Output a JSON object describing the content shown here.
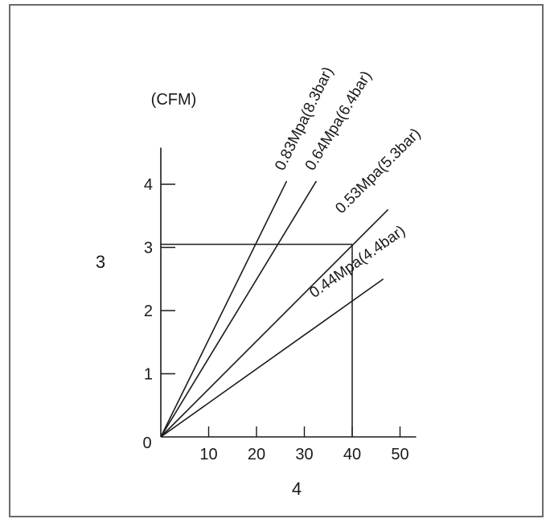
{
  "chart_data": {
    "type": "line",
    "title": "",
    "xlabel": "4",
    "ylabel": "3",
    "y_unit": "(CFM)",
    "xlim": [
      0,
      50
    ],
    "ylim": [
      0,
      5
    ],
    "x_ticks": [
      10,
      20,
      30,
      40,
      50
    ],
    "y_ticks": [
      1,
      2,
      3,
      4
    ],
    "origin_label": "0",
    "grid": false,
    "series": [
      {
        "name": "0.83Mpa(8.3bar)",
        "x": [
          0,
          26.3
        ],
        "y": [
          0,
          4.05
        ]
      },
      {
        "name": "0.64Mpa(6.4bar)",
        "x": [
          0,
          32.5
        ],
        "y": [
          0,
          4.05
        ]
      },
      {
        "name": "0.53Mpa(5.3bar)",
        "x": [
          0,
          47.5
        ],
        "y": [
          0,
          3.6
        ]
      },
      {
        "name": "0.44Mpa(4.4bar)",
        "x": [
          0,
          46.5
        ],
        "y": [
          0,
          2.5
        ]
      }
    ],
    "reference_point": {
      "x": 40,
      "y": 3.05
    }
  }
}
